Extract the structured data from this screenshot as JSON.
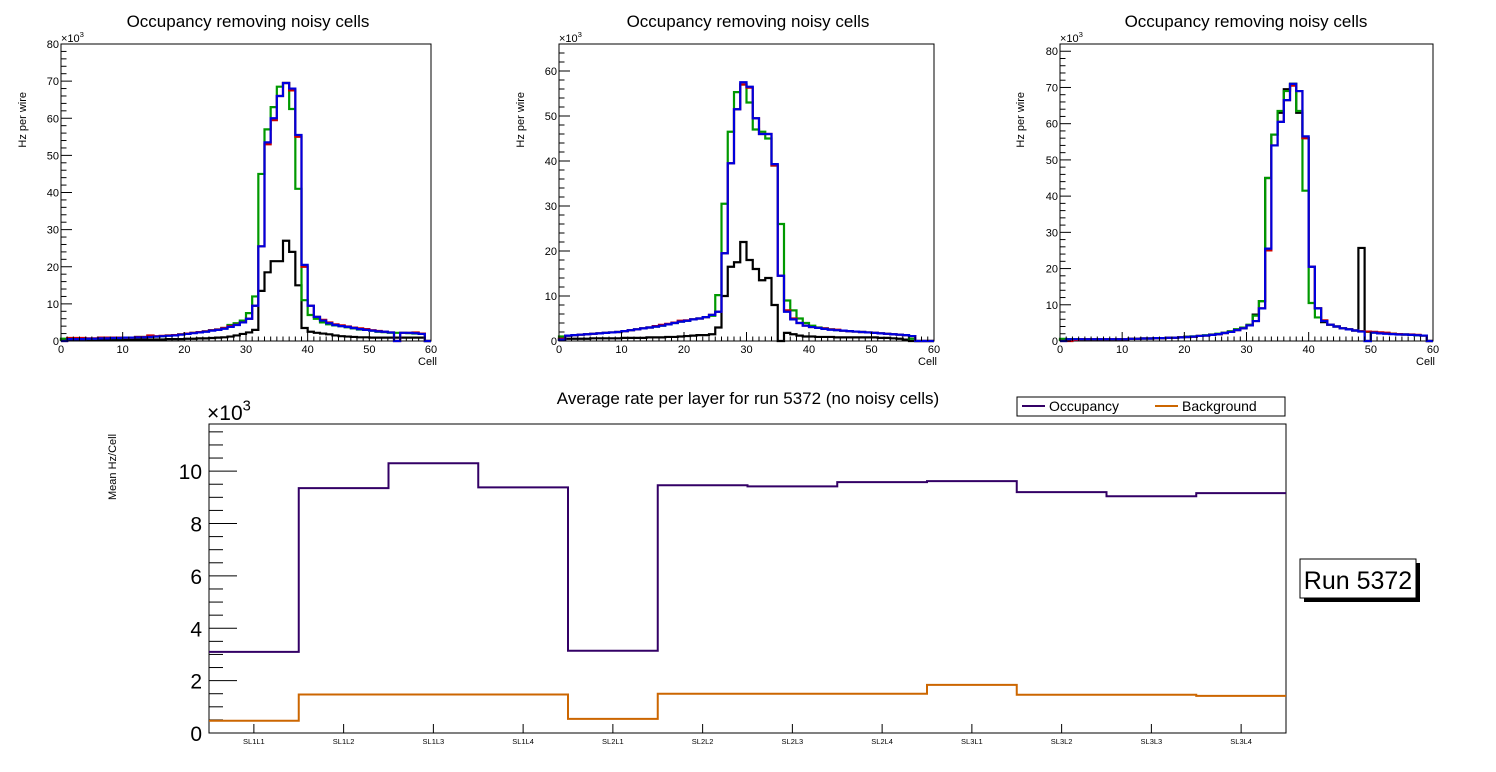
{
  "chart_data": [
    {
      "type": "histogram-step",
      "title": "Occupancy removing noisy cells",
      "xlabel": "Cell",
      "ylabel": "Hz per wire",
      "y_multiplier": "×10^3",
      "xlim": [
        0,
        60
      ],
      "ylim": [
        0,
        80
      ],
      "xticks": [
        0,
        10,
        20,
        30,
        40,
        50,
        60
      ],
      "yticks": [
        0,
        10,
        20,
        30,
        40,
        50,
        60,
        70,
        80
      ],
      "series": [
        {
          "name": "black",
          "color": "#000000",
          "values": [
            0.3,
            0.3,
            0.3,
            0.3,
            0.3,
            0.3,
            0.3,
            0.3,
            0.3,
            0.3,
            0.3,
            0.3,
            0.4,
            0.4,
            0.4,
            0.4,
            0.4,
            0.5,
            0.5,
            0.5,
            0.6,
            0.6,
            0.7,
            0.7,
            0.8,
            0.9,
            1.0,
            1.2,
            1.5,
            1.9,
            2.3,
            3.0,
            13.5,
            18.5,
            21.5,
            21.5,
            27,
            24,
            15,
            3.5,
            2.5,
            2.2,
            2.0,
            1.8,
            1.5,
            1.3,
            1.2,
            1.1,
            1.0,
            1.0,
            0.9,
            0.9,
            0.9,
            0.9,
            0.9,
            0.9,
            0.9,
            0.9,
            0.9,
            0
          ]
        },
        {
          "name": "green",
          "color": "#009900",
          "values": [
            0.6,
            0.6,
            0.6,
            0.6,
            0.6,
            0.6,
            0.7,
            0.7,
            0.8,
            0.8,
            0.9,
            0.9,
            1.1,
            1.1,
            1.2,
            1.2,
            1.3,
            1.5,
            1.6,
            1.8,
            2.0,
            2.2,
            2.4,
            2.6,
            2.9,
            3.1,
            3.5,
            4.3,
            4.8,
            5.5,
            7.5,
            12,
            45,
            57,
            63,
            68.5,
            69.5,
            62.5,
            41,
            11,
            7,
            6,
            5,
            4.5,
            4.2,
            4.0,
            3.7,
            3.4,
            3.1,
            3.0,
            2.8,
            2.5,
            2.4,
            2.2,
            2.2,
            2.2,
            2.1,
            2.0,
            1.9,
            0
          ]
        },
        {
          "name": "red",
          "color": "#cc0000",
          "values": [
            0,
            0.8,
            0.8,
            0.8,
            0.7,
            0.7,
            0.9,
            0.9,
            0.9,
            0.9,
            0.9,
            0.9,
            1.1,
            1.1,
            1.5,
            1.3,
            1.4,
            1.5,
            1.6,
            1.8,
            2.0,
            2.2,
            2.4,
            2.6,
            2.9,
            3.1,
            3.5,
            4.0,
            4.4,
            5.0,
            6.0,
            9.5,
            25.5,
            53,
            59.5,
            66,
            69.5,
            67.5,
            55,
            20,
            9.5,
            6.5,
            5.7,
            5.0,
            4.5,
            4.2,
            3.9,
            3.6,
            3.4,
            3.2,
            2.9,
            2.7,
            2.5,
            2.3,
            0,
            2.2,
            2.2,
            2.3,
            2.0,
            0
          ]
        },
        {
          "name": "blue",
          "color": "#0000dd",
          "values": [
            0,
            0.5,
            0.5,
            0.5,
            0.6,
            0.6,
            0.7,
            0.7,
            0.8,
            0.8,
            0.9,
            0.9,
            1.0,
            1.0,
            1.1,
            1.2,
            1.3,
            1.4,
            1.5,
            1.7,
            1.9,
            2.1,
            2.3,
            2.5,
            2.8,
            3.0,
            3.3,
            3.8,
            4.3,
            5.0,
            6.0,
            9.5,
            25.5,
            53.5,
            60,
            66,
            69.5,
            68,
            55.5,
            20.5,
            9.5,
            6.5,
            5.5,
            4.8,
            4.3,
            4.0,
            3.8,
            3.5,
            3.2,
            3.0,
            2.8,
            2.6,
            2.5,
            2.3,
            0,
            2.2,
            2.2,
            2.1,
            1.9,
            0
          ]
        }
      ]
    },
    {
      "type": "histogram-step",
      "title": "Occupancy removing noisy cells",
      "xlabel": "Cell",
      "ylabel": "Hz per wire",
      "y_multiplier": "×10^3",
      "xlim": [
        0,
        60
      ],
      "ylim": [
        0,
        66
      ],
      "xticks": [
        0,
        10,
        20,
        30,
        40,
        50,
        60
      ],
      "yticks": [
        0,
        10,
        20,
        30,
        40,
        50,
        60
      ],
      "series": [
        {
          "name": "black",
          "color": "#000000",
          "values": [
            0.5,
            0.5,
            0.5,
            0.5,
            0.5,
            0.6,
            0.6,
            0.6,
            0.6,
            0.6,
            0.7,
            0.7,
            0.7,
            0.7,
            0.8,
            0.8,
            0.8,
            0.9,
            0.9,
            1.0,
            1.1,
            1.2,
            1.3,
            1.3,
            1.5,
            3.0,
            10,
            16.5,
            17.5,
            22,
            18,
            16,
            13.5,
            14,
            8,
            0,
            1.8,
            1.5,
            1.2,
            1.0,
            1.0,
            0.9,
            0.9,
            0.9,
            0.8,
            0.8,
            0.8,
            0.8,
            0.8,
            0.8,
            0.8,
            0.7,
            0.7,
            0.6,
            0.5,
            0.3,
            0,
            0,
            0,
            0
          ]
        },
        {
          "name": "green",
          "color": "#009900",
          "values": [
            1.0,
            1.2,
            1.3,
            1.4,
            1.5,
            1.6,
            1.7,
            1.8,
            1.9,
            2.0,
            2.2,
            2.4,
            2.6,
            2.8,
            3.0,
            3.2,
            3.4,
            3.7,
            4.0,
            4.3,
            4.5,
            4.8,
            5.0,
            5.3,
            5.6,
            10.2,
            30.5,
            46.5,
            55.3,
            57,
            53,
            47,
            46.5,
            45,
            39,
            26,
            9,
            6.8,
            5,
            4,
            3.4,
            3.0,
            2.8,
            2.6,
            2.4,
            2.3,
            2.2,
            2.1,
            2.0,
            1.9,
            1.8,
            1.7,
            1.6,
            1.5,
            1.4,
            1.3,
            0.5,
            0,
            0,
            0
          ]
        },
        {
          "name": "red",
          "color": "#cc0000",
          "values": [
            0.5,
            1.2,
            1.3,
            1.4,
            1.5,
            1.6,
            1.7,
            1.8,
            1.9,
            2.0,
            2.2,
            2.4,
            2.6,
            2.8,
            3.0,
            3.3,
            3.6,
            3.8,
            4.1,
            4.5,
            4.6,
            4.8,
            5.0,
            5.3,
            5.8,
            6.5,
            19.5,
            39.5,
            51.5,
            57,
            56.3,
            49.5,
            46,
            46,
            39,
            14.5,
            6.8,
            5.0,
            4.0,
            3.4,
            3.1,
            2.9,
            2.8,
            2.6,
            2.5,
            2.3,
            2.2,
            2.1,
            2.0,
            1.9,
            1.8,
            1.7,
            1.6,
            1.5,
            1.4,
            1.3,
            1.1,
            0,
            0,
            0
          ]
        },
        {
          "name": "blue",
          "color": "#0000dd",
          "values": [
            0.3,
            1.2,
            1.3,
            1.4,
            1.5,
            1.6,
            1.7,
            1.8,
            1.9,
            2.0,
            2.2,
            2.4,
            2.6,
            2.8,
            3.0,
            3.2,
            3.4,
            3.7,
            4.0,
            4.3,
            4.5,
            4.8,
            5.0,
            5.3,
            5.8,
            6.5,
            19.5,
            39.5,
            51.5,
            57.5,
            56.5,
            49.5,
            46,
            46,
            39.3,
            14.5,
            6.5,
            4.8,
            4.0,
            3.4,
            3.1,
            2.9,
            2.7,
            2.5,
            2.4,
            2.3,
            2.2,
            2.1,
            2.0,
            1.9,
            1.8,
            1.7,
            1.6,
            1.5,
            1.4,
            1.3,
            1.1,
            0,
            0,
            0
          ]
        }
      ]
    },
    {
      "type": "histogram-step",
      "title": "Occupancy removing noisy cells",
      "xlabel": "Cell",
      "ylabel": "Hz per wire",
      "y_multiplier": "×10^3",
      "xlim": [
        0,
        60
      ],
      "ylim": [
        0,
        82
      ],
      "xticks": [
        0,
        10,
        20,
        30,
        40,
        50,
        60
      ],
      "yticks": [
        0,
        10,
        20,
        30,
        40,
        50,
        60,
        70,
        80
      ],
      "series": [
        {
          "name": "black",
          "color": "#000000",
          "values": [
            0.3,
            0.5,
            0.5,
            0.5,
            0.5,
            0.5,
            0.5,
            0.5,
            0.5,
            0.5,
            0.5,
            0.6,
            0.6,
            0.7,
            0.7,
            0.8,
            0.8,
            0.9,
            0.9,
            1.0,
            1.1,
            1.2,
            1.4,
            1.5,
            1.7,
            1.9,
            2.2,
            2.5,
            3.2,
            3.5,
            4.3,
            7.3,
            11,
            45,
            57,
            63,
            69.5,
            71,
            63,
            56,
            20.5,
            9,
            5.2,
            4.5,
            4.0,
            3.5,
            3.2,
            2.9,
            25.7,
            0,
            2.5,
            2.3,
            2.1,
            2.0,
            1.9,
            1.8,
            1.7,
            1.6,
            1.5,
            0
          ]
        },
        {
          "name": "green",
          "color": "#009900",
          "values": [
            0.6,
            0.5,
            0.5,
            0.5,
            0.5,
            0.5,
            0.5,
            0.5,
            0.5,
            0.5,
            0.5,
            0.6,
            0.6,
            0.7,
            0.7,
            0.8,
            0.8,
            0.9,
            0.9,
            1.0,
            1.2,
            1.3,
            1.4,
            1.6,
            1.8,
            2.0,
            2.3,
            2.7,
            3.2,
            3.7,
            4.5,
            7,
            11,
            45,
            57,
            63.5,
            69,
            71,
            63.5,
            41.5,
            10.5,
            6.5,
            5.5,
            4.5,
            4.0,
            3.5,
            3.2,
            2.9,
            2.7,
            2.5,
            2.3,
            2.2,
            2.1,
            2.0,
            1.9,
            1.8,
            1.7,
            1.6,
            1.5,
            0
          ]
        },
        {
          "name": "red",
          "color": "#cc0000",
          "values": [
            0,
            0,
            0.3,
            0.5,
            0.5,
            0.5,
            0.5,
            0.5,
            0.5,
            0.5,
            0.5,
            0.6,
            0.6,
            0.7,
            0.7,
            0.8,
            0.8,
            0.9,
            0.9,
            1.0,
            1.1,
            1.2,
            1.4,
            1.5,
            1.7,
            1.9,
            2.2,
            2.5,
            3.0,
            3.5,
            4.3,
            5.5,
            9,
            25,
            54,
            60.5,
            66.5,
            70.5,
            69,
            56,
            20.5,
            9,
            5.7,
            4.5,
            4.0,
            3.5,
            3.2,
            2.9,
            2.7,
            2.6,
            2.5,
            2.4,
            2.3,
            2.0,
            1.9,
            1.8,
            1.8,
            1.7,
            1.5,
            0
          ]
        },
        {
          "name": "blue",
          "color": "#0000dd",
          "values": [
            0,
            0.5,
            0.5,
            0.5,
            0.5,
            0.5,
            0.5,
            0.5,
            0.5,
            0.5,
            0.5,
            0.6,
            0.6,
            0.7,
            0.7,
            0.8,
            0.8,
            0.9,
            0.9,
            1.0,
            1.1,
            1.2,
            1.4,
            1.5,
            1.7,
            1.9,
            2.2,
            2.5,
            3.0,
            3.5,
            4.3,
            5.5,
            9,
            25.5,
            54,
            60.5,
            66.5,
            71,
            69,
            56.5,
            20.5,
            9,
            5.5,
            4.5,
            4.0,
            3.5,
            3.2,
            2.9,
            2.6,
            0,
            2.3,
            2.1,
            2.0,
            1.9,
            1.8,
            1.8,
            1.7,
            1.6,
            1.5,
            0
          ]
        }
      ]
    },
    {
      "type": "line-step",
      "title": "Average rate per layer for run 5372 (no noisy cells)",
      "xlabel": "",
      "ylabel": "Mean Hz/Cell",
      "y_multiplier": "×10^3",
      "ylim": [
        0,
        11.8
      ],
      "yticks": [
        0,
        2,
        4,
        6,
        8,
        10
      ],
      "categories": [
        "SL1L1",
        "SL1L2",
        "SL1L3",
        "SL1L4",
        "SL2L1",
        "SL2L2",
        "SL2L3",
        "SL2L4",
        "SL3L1",
        "SL3L2",
        "SL3L3",
        "SL3L4"
      ],
      "legend_position": "top-right",
      "series": [
        {
          "name": "Occupancy",
          "color": "#330066",
          "values": [
            3.1,
            9.35,
            10.3,
            9.38,
            3.14,
            9.46,
            9.42,
            9.58,
            9.62,
            9.2,
            9.04,
            9.16
          ]
        },
        {
          "name": "Background",
          "color": "#cc6600",
          "values": [
            0.47,
            1.47,
            1.47,
            1.47,
            0.54,
            1.5,
            1.5,
            1.5,
            1.84,
            1.46,
            1.46,
            1.42
          ]
        }
      ],
      "annotation": "Run 5372"
    }
  ]
}
